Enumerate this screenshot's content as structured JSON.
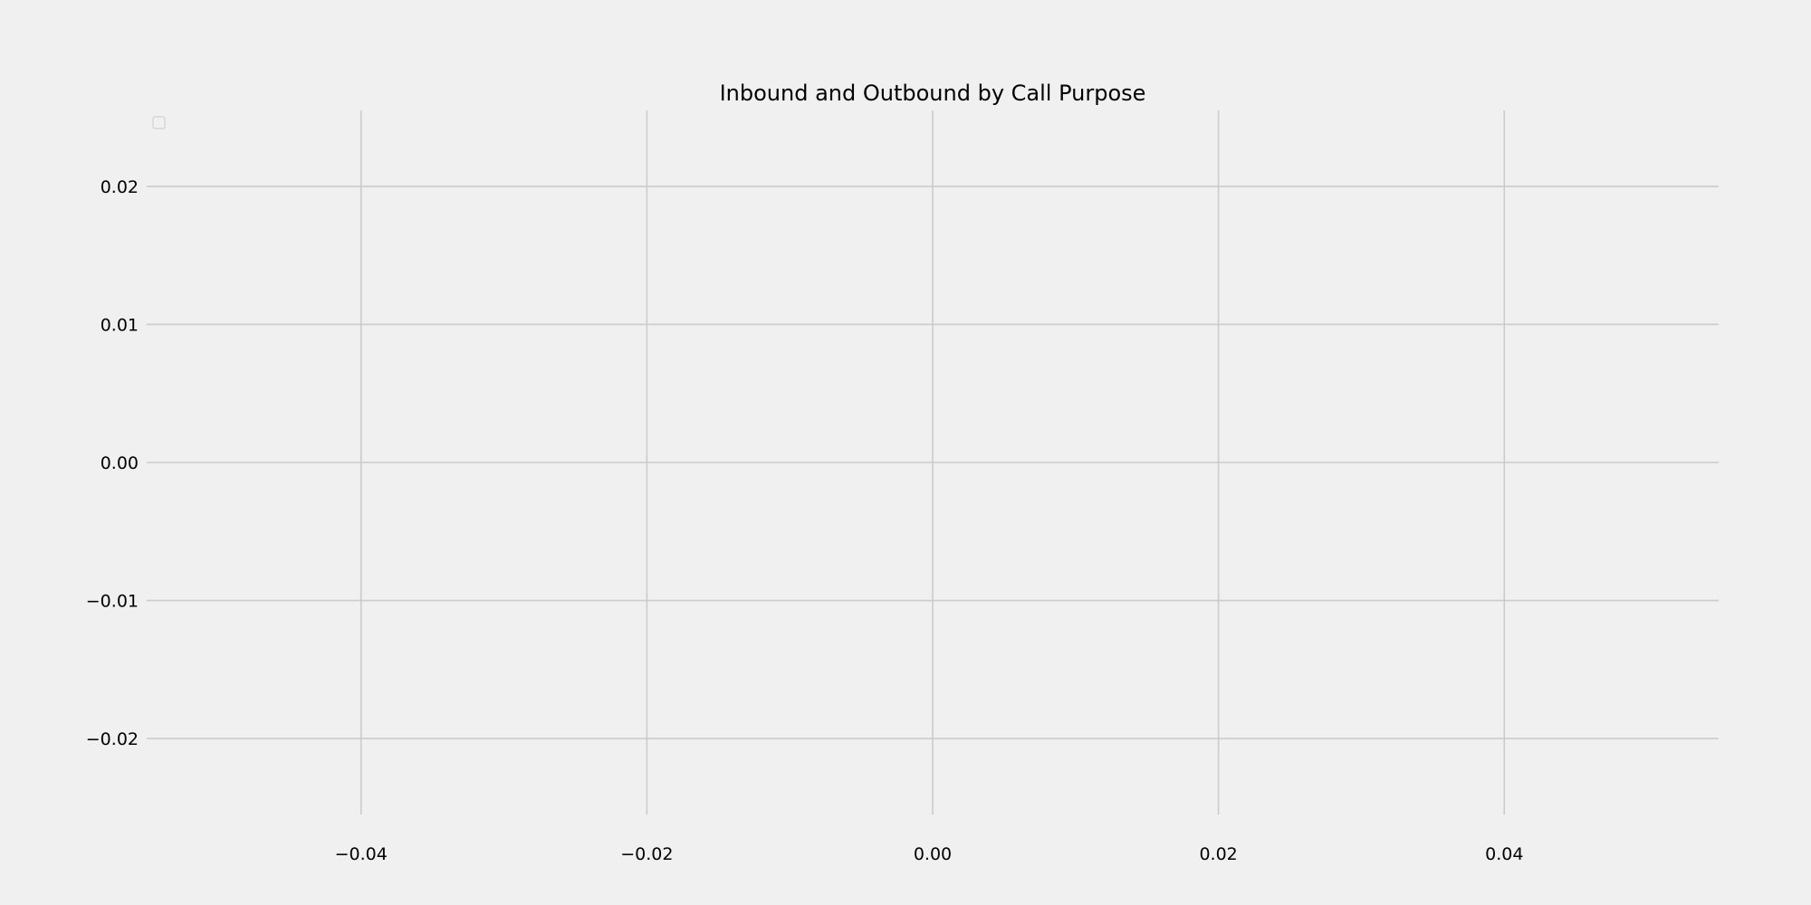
{
  "chart_data": {
    "type": "line",
    "title": "Inbound and Outbound by Call Purpose",
    "xlabel": "",
    "ylabel": "",
    "xlim": [
      -0.055,
      0.055
    ],
    "ylim": [
      -0.0255,
      0.0255
    ],
    "x_ticks": [
      -0.04,
      -0.02,
      0.0,
      0.02,
      0.04
    ],
    "x_tick_labels": [
      "−0.04",
      "−0.02",
      "0.00",
      "0.02",
      "0.04"
    ],
    "y_ticks": [
      0.02,
      0.01,
      0.0,
      -0.01,
      -0.02
    ],
    "y_tick_labels": [
      "0.02",
      "0.01",
      "0.00",
      "−0.01",
      "−0.02"
    ],
    "series": [],
    "grid": true,
    "legend": "upper-left",
    "colors": {
      "background": "#f0f0f0",
      "grid": "#cbcbcb",
      "text": "#000000"
    }
  }
}
